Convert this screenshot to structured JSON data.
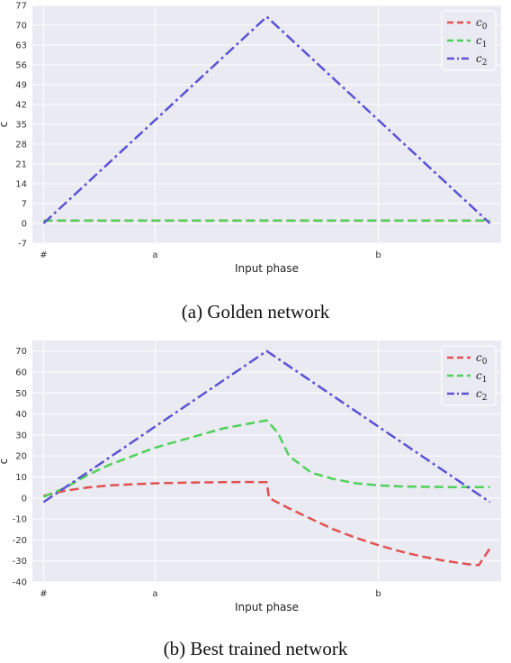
{
  "captions": [
    "(a) Golden network",
    "(b) Best trained network"
  ],
  "chart_data": [
    {
      "type": "line",
      "title": "",
      "xlabel": "Input phase",
      "ylabel": "c",
      "x_ticks": [
        "#",
        "a",
        "b"
      ],
      "x_tick_positions": [
        0,
        5,
        15
      ],
      "xlim": [
        -0.5,
        20.5
      ],
      "ylim": [
        -7,
        77
      ],
      "y_ticks": [
        -7,
        0,
        7,
        14,
        21,
        28,
        35,
        42,
        49,
        56,
        63,
        70,
        77
      ],
      "grid": true,
      "legend_placement": "top-right",
      "legend": [
        {
          "base": "c",
          "sub": "0"
        },
        {
          "base": "c",
          "sub": "1"
        },
        {
          "base": "c",
          "sub": "2"
        }
      ],
      "series": [
        {
          "name": "c0",
          "color": "#e05252",
          "x": [
            0,
            20
          ],
          "y": [
            1,
            1
          ]
        },
        {
          "name": "c1",
          "color": "#4fd15a",
          "x": [
            0,
            20
          ],
          "y": [
            1,
            1
          ]
        },
        {
          "name": "c2",
          "color": "#5a52d4",
          "x": [
            0,
            10,
            20
          ],
          "y": [
            0,
            73,
            0
          ]
        }
      ]
    },
    {
      "type": "line",
      "title": "",
      "xlabel": "Input phase",
      "ylabel": "c",
      "x_ticks": [
        "#",
        "a",
        "b"
      ],
      "x_tick_positions": [
        0,
        5,
        15
      ],
      "xlim": [
        -0.5,
        20.5
      ],
      "ylim": [
        -40,
        75
      ],
      "y_ticks": [
        -40,
        -30,
        -20,
        -10,
        0,
        10,
        20,
        30,
        40,
        50,
        60,
        70
      ],
      "grid": true,
      "legend_placement": "top-right",
      "legend": [
        {
          "base": "c",
          "sub": "0"
        },
        {
          "base": "c",
          "sub": "1"
        },
        {
          "base": "c",
          "sub": "2"
        }
      ],
      "series": [
        {
          "name": "c0",
          "color": "#e05252",
          "x": [
            0,
            1,
            2,
            3,
            4,
            5,
            6,
            7,
            8,
            9,
            10,
            10.1,
            11,
            12,
            13,
            14,
            15,
            16,
            17,
            18,
            19,
            19.5,
            20
          ],
          "y": [
            1,
            3.5,
            5,
            6,
            6.5,
            7,
            7.2,
            7.4,
            7.5,
            7.6,
            7.5,
            0,
            -5,
            -10,
            -15,
            -19,
            -22.5,
            -25.5,
            -28,
            -30,
            -31.5,
            -32,
            -24
          ]
        },
        {
          "name": "c1",
          "color": "#4fd15a",
          "x": [
            0,
            1,
            2,
            3,
            4,
            5,
            6,
            7,
            8,
            9,
            10,
            10.5,
            11,
            12,
            13,
            14,
            15,
            16,
            17,
            18,
            19,
            20
          ],
          "y": [
            0.5,
            5,
            11,
            16,
            20,
            24,
            27,
            30,
            33,
            35,
            37,
            31,
            20,
            12,
            9,
            7,
            6,
            5.5,
            5.3,
            5.2,
            5.2,
            5.2
          ]
        },
        {
          "name": "c2",
          "color": "#5a52d4",
          "x": [
            0,
            10,
            20
          ],
          "y": [
            -2,
            70,
            -2
          ]
        }
      ]
    }
  ]
}
